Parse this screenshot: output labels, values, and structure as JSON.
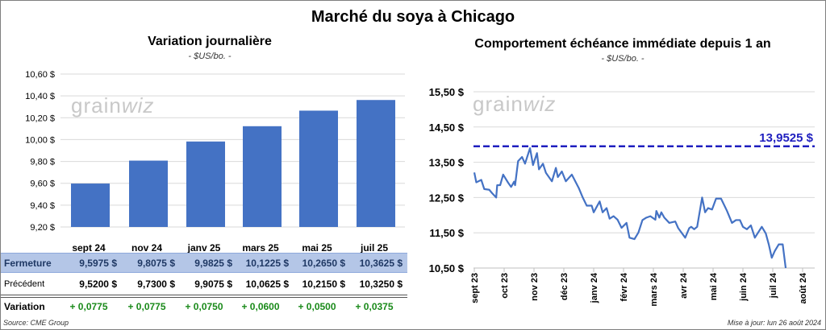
{
  "title": "Marché du soya à Chicago",
  "logo": {
    "text": "grainwiz"
  },
  "chart_data": [
    {
      "type": "bar",
      "title": "Variation journalière",
      "subtitle": "- $US/bo. -",
      "categories": [
        "sept 24",
        "nov 24",
        "janv 25",
        "mars 25",
        "mai 25",
        "juil 25"
      ],
      "values": [
        9.5975,
        9.8075,
        9.9825,
        10.1225,
        10.265,
        10.3625
      ],
      "ylim": [
        9.2,
        10.6
      ],
      "yticks": [
        "9,20 $",
        "9,40 $",
        "9,60 $",
        "9,80 $",
        "10,00 $",
        "10,20 $",
        "10,40 $",
        "10,60 $"
      ],
      "grid": true,
      "color": "#4472c4"
    },
    {
      "type": "line",
      "title": "Comportement  échéance immédiate depuis 1 an",
      "subtitle": "- $US/bo. -",
      "ylim": [
        10.5,
        15.5
      ],
      "yticks": [
        "10,50 $",
        "11,50 $",
        "12,50 $",
        "13,50 $",
        "14,50 $",
        "15,50 $"
      ],
      "xticks": [
        "sept 23",
        "oct 23",
        "nov 23",
        "déc 23",
        "janv 24",
        "févr 24",
        "mars 24",
        "avr 24",
        "mai 24",
        "juin 24",
        "juil 24",
        "août 24"
      ],
      "grid": true,
      "color": "#4472c4",
      "reference": {
        "value": 13.9525,
        "label": "13,9525  $",
        "color": "#1f1fbf"
      },
      "points": [
        [
          "2023-09-01",
          13.21
        ],
        [
          "2023-09-03",
          12.93
        ],
        [
          "2023-09-08",
          13.0
        ],
        [
          "2023-09-11",
          12.74
        ],
        [
          "2023-09-16",
          12.72
        ],
        [
          "2023-09-19",
          12.62
        ],
        [
          "2023-09-23",
          12.5
        ],
        [
          "2023-09-24",
          12.85
        ],
        [
          "2023-09-27",
          12.85
        ],
        [
          "2023-09-30",
          13.15
        ],
        [
          "2023-10-05",
          12.92
        ],
        [
          "2023-10-08",
          12.8
        ],
        [
          "2023-10-11",
          12.95
        ],
        [
          "2023-10-12",
          12.85
        ],
        [
          "2023-10-15",
          13.53
        ],
        [
          "2023-10-19",
          13.65
        ],
        [
          "2023-10-22",
          13.46
        ],
        [
          "2023-10-27",
          13.9
        ],
        [
          "2023-10-30",
          13.42
        ],
        [
          "2023-11-04",
          13.76
        ],
        [
          "2023-11-06",
          13.3
        ],
        [
          "2023-11-10",
          13.46
        ],
        [
          "2023-11-13",
          13.2
        ],
        [
          "2023-11-19",
          12.96
        ],
        [
          "2023-11-23",
          13.34
        ],
        [
          "2023-11-25",
          13.08
        ],
        [
          "2023-11-29",
          13.24
        ],
        [
          "2023-12-03",
          12.96
        ],
        [
          "2023-12-09",
          13.15
        ],
        [
          "2023-12-16",
          12.77
        ],
        [
          "2023-12-20",
          12.5
        ],
        [
          "2023-12-24",
          12.27
        ],
        [
          "2023-12-29",
          12.27
        ],
        [
          "2023-12-31",
          12.08
        ],
        [
          "2024-01-07",
          12.39
        ],
        [
          "2024-01-10",
          12.08
        ],
        [
          "2024-01-14",
          12.2
        ],
        [
          "2024-01-17",
          11.9
        ],
        [
          "2024-01-21",
          11.97
        ],
        [
          "2024-01-25",
          11.87
        ],
        [
          "2024-01-29",
          11.64
        ],
        [
          "2024-02-04",
          11.78
        ],
        [
          "2024-02-07",
          11.36
        ],
        [
          "2024-02-12",
          11.32
        ],
        [
          "2024-02-16",
          11.51
        ],
        [
          "2024-02-20",
          11.86
        ],
        [
          "2024-02-24",
          11.93
        ],
        [
          "2024-02-28",
          11.97
        ],
        [
          "2024-03-03",
          11.87
        ],
        [
          "2024-03-04",
          12.12
        ],
        [
          "2024-03-07",
          11.93
        ],
        [
          "2024-03-09",
          12.08
        ],
        [
          "2024-03-12",
          11.93
        ],
        [
          "2024-03-17",
          11.78
        ],
        [
          "2024-03-23",
          11.82
        ],
        [
          "2024-03-26",
          11.63
        ],
        [
          "2024-04-03",
          11.36
        ],
        [
          "2024-04-07",
          11.63
        ],
        [
          "2024-04-09",
          11.67
        ],
        [
          "2024-04-12",
          11.6
        ],
        [
          "2024-04-15",
          11.67
        ],
        [
          "2024-04-20",
          12.5
        ],
        [
          "2024-04-23",
          12.08
        ],
        [
          "2024-04-26",
          12.2
        ],
        [
          "2024-04-30",
          12.16
        ],
        [
          "2024-05-04",
          12.47
        ],
        [
          "2024-05-09",
          12.47
        ],
        [
          "2024-05-15",
          12.12
        ],
        [
          "2024-05-20",
          11.78
        ],
        [
          "2024-05-24",
          11.86
        ],
        [
          "2024-05-28",
          11.86
        ],
        [
          "2024-05-31",
          11.67
        ],
        [
          "2024-06-05",
          11.6
        ],
        [
          "2024-06-09",
          11.71
        ],
        [
          "2024-06-13",
          11.36
        ],
        [
          "2024-06-20",
          11.67
        ],
        [
          "2024-06-24",
          11.48
        ],
        [
          "2024-06-27",
          11.17
        ],
        [
          "2024-06-30",
          10.79
        ],
        [
          "2024-07-03",
          10.98
        ],
        [
          "2024-07-07",
          11.17
        ],
        [
          "2024-07-11",
          11.17
        ],
        [
          "2024-07-14",
          10.5
        ]
      ]
    }
  ],
  "table": {
    "headers": [
      "sept 24",
      "nov 24",
      "janv 25",
      "mars 25",
      "mai 25",
      "juil 25"
    ],
    "rows": [
      {
        "label": "Fermeture",
        "values": [
          "9,5975  $",
          "9,8075  $",
          "9,9825  $",
          "10,1225  $",
          "10,2650  $",
          "10,3625  $"
        ]
      },
      {
        "label": "Précédent",
        "values": [
          "9,5200  $",
          "9,7300  $",
          "9,9075  $",
          "10,0625  $",
          "10,2150  $",
          "10,3250  $"
        ]
      },
      {
        "label": "Variation",
        "values": [
          "+ 0,0775",
          "+ 0,0775",
          "+ 0,0750",
          "+ 0,0600",
          "+ 0,0500",
          "+ 0,0375"
        ]
      }
    ]
  },
  "source": "Source: CME Group",
  "updated": "Mise à jour: lun 26 août 2024"
}
